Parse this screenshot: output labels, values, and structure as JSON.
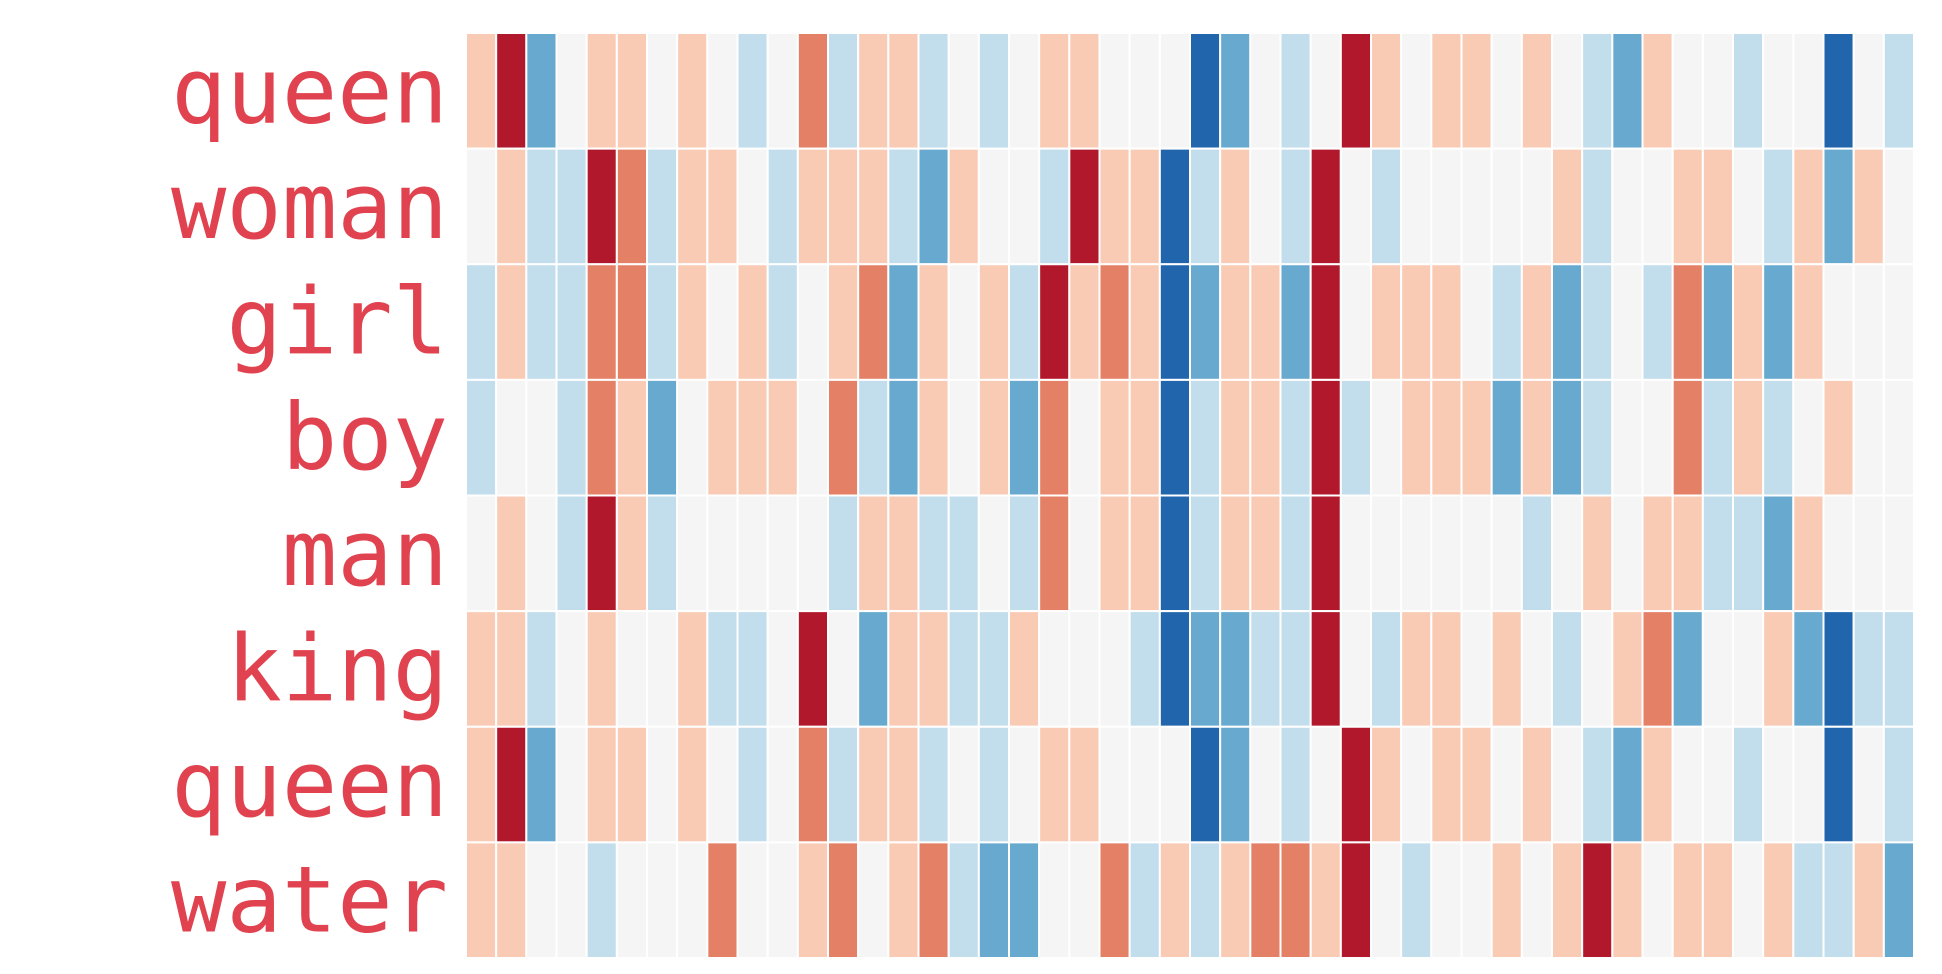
{
  "chart_data": {
    "type": "heatmap",
    "rows": [
      "queen",
      "woman",
      "girl",
      "boy",
      "man",
      "king",
      "queen",
      "water"
    ],
    "value_scale": [
      -3,
      3
    ],
    "colormap": {
      "-3": "#2166ac",
      "-2": "#67a9cf",
      "-1": "#c2ddec",
      "0": "#f5f5f5",
      "1": "#f9cbb4",
      "2": "#e48066",
      "3": "#b2182b"
    },
    "values": [
      [
        1,
        3,
        -2,
        0,
        1,
        1,
        0,
        1,
        0,
        -1,
        0,
        2,
        -1,
        1,
        1,
        -1,
        0,
        -1,
        0,
        1,
        1,
        0,
        0,
        0,
        -3,
        -2,
        0,
        -1,
        0,
        3,
        1,
        0,
        1,
        1,
        0,
        1,
        0,
        -1,
        -2,
        1,
        0,
        0,
        -1,
        0,
        0,
        -3,
        0,
        -1
      ],
      [
        0,
        1,
        -1,
        -1,
        3,
        2,
        -1,
        1,
        1,
        0,
        -1,
        1,
        1,
        1,
        -1,
        -2,
        1,
        0,
        0,
        -1,
        3,
        1,
        1,
        -3,
        -1,
        1,
        0,
        -1,
        3,
        0,
        -1,
        0,
        0,
        0,
        0,
        0,
        1,
        -1,
        0,
        0,
        1,
        1,
        0,
        -1,
        1,
        -2,
        1,
        0
      ],
      [
        -1,
        1,
        -1,
        -1,
        2,
        2,
        -1,
        1,
        0,
        1,
        -1,
        0,
        1,
        2,
        -2,
        1,
        0,
        1,
        -1,
        3,
        1,
        2,
        1,
        -3,
        -2,
        1,
        1,
        -2,
        3,
        0,
        1,
        1,
        1,
        0,
        -1,
        1,
        -2,
        -1,
        0,
        -1,
        2,
        -2,
        1,
        -2,
        1,
        0,
        0,
        0
      ],
      [
        -1,
        0,
        0,
        -1,
        2,
        1,
        -2,
        0,
        1,
        1,
        1,
        0,
        2,
        -1,
        -2,
        1,
        0,
        1,
        -2,
        2,
        0,
        1,
        1,
        -3,
        -1,
        1,
        1,
        -1,
        3,
        -1,
        0,
        1,
        1,
        1,
        -2,
        1,
        -2,
        -1,
        0,
        0,
        2,
        -1,
        1,
        -1,
        0,
        1,
        0,
        0
      ],
      [
        0,
        1,
        0,
        -1,
        3,
        1,
        -1,
        0,
        0,
        0,
        0,
        0,
        -1,
        1,
        1,
        -1,
        -1,
        0,
        -1,
        2,
        0,
        1,
        1,
        -3,
        -1,
        1,
        1,
        -1,
        3,
        0,
        0,
        0,
        0,
        0,
        0,
        -1,
        0,
        1,
        0,
        1,
        1,
        -1,
        -1,
        -2,
        1,
        0,
        0,
        0
      ],
      [
        1,
        1,
        -1,
        0,
        1,
        0,
        0,
        1,
        -1,
        -1,
        0,
        3,
        0,
        -2,
        1,
        1,
        -1,
        -1,
        1,
        0,
        0,
        0,
        -1,
        -3,
        -2,
        -2,
        -1,
        -1,
        3,
        0,
        -1,
        1,
        1,
        0,
        1,
        0,
        -1,
        0,
        1,
        2,
        -2,
        0,
        0,
        1,
        -2,
        -3,
        -1,
        -1
      ],
      [
        1,
        3,
        -2,
        0,
        1,
        1,
        0,
        1,
        0,
        -1,
        0,
        2,
        -1,
        1,
        1,
        -1,
        0,
        -1,
        0,
        1,
        1,
        0,
        0,
        0,
        -3,
        -2,
        0,
        -1,
        0,
        3,
        1,
        0,
        1,
        1,
        0,
        1,
        0,
        -1,
        -2,
        1,
        0,
        0,
        -1,
        0,
        0,
        -3,
        0,
        -1
      ],
      [
        1,
        1,
        0,
        0,
        -1,
        0,
        0,
        0,
        2,
        0,
        0,
        1,
        2,
        0,
        1,
        2,
        -1,
        -2,
        -2,
        0,
        0,
        2,
        -1,
        1,
        -1,
        1,
        2,
        2,
        1,
        3,
        0,
        -1,
        0,
        0,
        1,
        0,
        1,
        3,
        1,
        0,
        1,
        1,
        0,
        1,
        -1,
        -1,
        1,
        -2
      ]
    ]
  }
}
